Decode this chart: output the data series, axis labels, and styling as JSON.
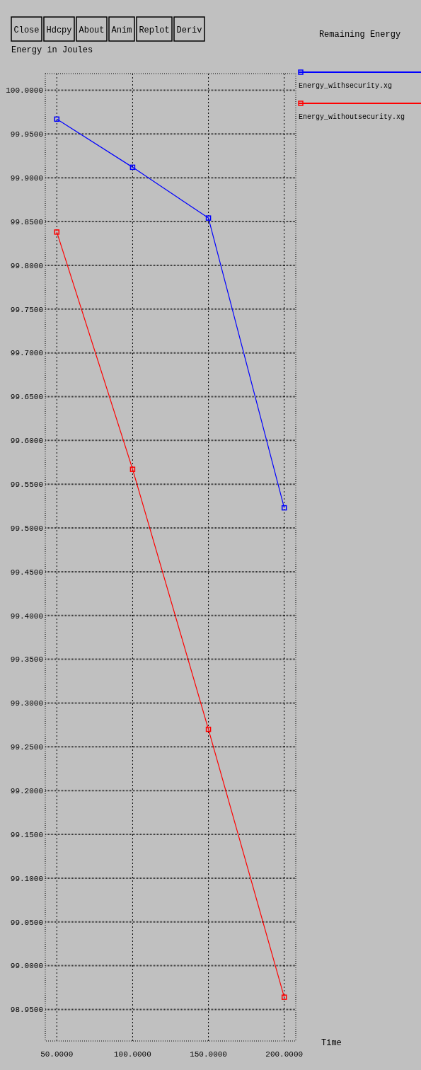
{
  "chart_data": {
    "type": "line",
    "title": "Remaining Energy",
    "xlabel": "Time",
    "ylabel": "Energy in Joules",
    "annotations": [
      "Close",
      "Hdcpy",
      "About",
      "Anim",
      "Replot",
      "Deriv"
    ],
    "x": [
      50,
      100,
      150,
      200
    ],
    "series": [
      {
        "name": "Energy_withsecurity.xg",
        "color": "#0000ff",
        "values": [
          99.967,
          99.912,
          99.854,
          99.523
        ]
      },
      {
        "name": "Energy_withoutsecurity.xg",
        "color": "#ff0000",
        "values": [
          99.838,
          99.567,
          99.27,
          98.964
        ]
      }
    ],
    "xlim": [
      42.4,
      207.6
    ],
    "xticks": [
      {
        "value": 50,
        "label": "50.0000"
      },
      {
        "value": 100,
        "label": "100.0000"
      },
      {
        "value": 150,
        "label": "150.0000"
      },
      {
        "value": 200,
        "label": "200.0000"
      }
    ],
    "ylim": [
      98.914,
      100.019
    ],
    "yticks": [
      {
        "value": 98.95,
        "label": "98.9500"
      },
      {
        "value": 99,
        "label": "99.0000"
      },
      {
        "value": 99.05,
        "label": "99.0500"
      },
      {
        "value": 99.1,
        "label": "99.1000"
      },
      {
        "value": 99.15,
        "label": "99.1500"
      },
      {
        "value": 99.2,
        "label": "99.2000"
      },
      {
        "value": 99.25,
        "label": "99.2500"
      },
      {
        "value": 99.3,
        "label": "99.3000"
      },
      {
        "value": 99.35,
        "label": "99.3500"
      },
      {
        "value": 99.4,
        "label": "99.4000"
      },
      {
        "value": 99.45,
        "label": "99.4500"
      },
      {
        "value": 99.5,
        "label": "99.5000"
      },
      {
        "value": 99.55,
        "label": "99.5500"
      },
      {
        "value": 99.6,
        "label": "99.6000"
      },
      {
        "value": 99.65,
        "label": "99.6500"
      },
      {
        "value": 99.7,
        "label": "99.7000"
      },
      {
        "value": 99.75,
        "label": "99.7500"
      },
      {
        "value": 99.8,
        "label": "99.8000"
      },
      {
        "value": 99.85,
        "label": "99.8500"
      },
      {
        "value": 99.9,
        "label": "99.9000"
      },
      {
        "value": 99.95,
        "label": "99.9500"
      },
      {
        "value": 100,
        "label": "100.0000"
      }
    ],
    "grid": true,
    "legend": "top right",
    "marker": "square"
  }
}
